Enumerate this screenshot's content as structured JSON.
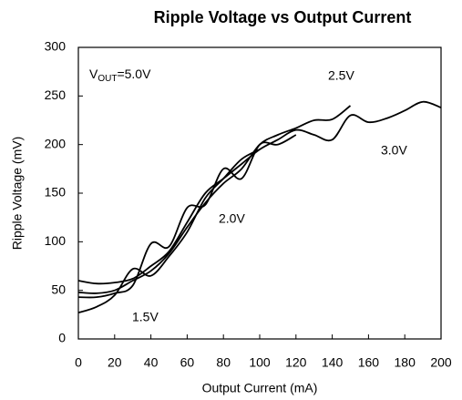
{
  "chart_data": {
    "type": "line",
    "title": "Ripple Voltage vs Output Current",
    "x_label": "Output Current (mA)",
    "y_label": "Ripple Voltage (mV)",
    "annotation": [
      "V",
      "OUT",
      "=5.0V"
    ],
    "xlim": [
      0,
      200
    ],
    "xticks": [
      0,
      20,
      40,
      60,
      80,
      100,
      120,
      140,
      160,
      180,
      200
    ],
    "ylim": [
      0,
      300
    ],
    "yticks": [
      0,
      50,
      100,
      150,
      200,
      250,
      300
    ],
    "series": [
      {
        "name": "1.5V",
        "color": "#000000",
        "x": [
          0,
          10,
          20,
          30,
          40,
          50,
          60,
          70,
          80,
          90,
          100
        ],
        "values": [
          27,
          33,
          45,
          72,
          65,
          85,
          110,
          145,
          165,
          185,
          195
        ]
      },
      {
        "name": "2.0V",
        "color": "#000000",
        "x": [
          0,
          10,
          20,
          30,
          40,
          50,
          60,
          70,
          80,
          90,
          100,
          110,
          120
        ],
        "values": [
          43,
          43,
          47,
          55,
          98,
          95,
          135,
          138,
          175,
          165,
          200,
          200,
          210
        ]
      },
      {
        "name": "2.5V",
        "color": "#000000",
        "x": [
          0,
          10,
          20,
          30,
          40,
          50,
          60,
          70,
          80,
          90,
          100,
          110,
          120,
          130,
          140,
          150
        ],
        "values": [
          48,
          47,
          50,
          60,
          70,
          88,
          115,
          140,
          160,
          175,
          200,
          210,
          217,
          225,
          226,
          240
        ]
      },
      {
        "name": "3.0V",
        "color": "#000000",
        "x": [
          0,
          10,
          20,
          30,
          40,
          50,
          60,
          70,
          80,
          90,
          100,
          110,
          120,
          130,
          140,
          150,
          160,
          170,
          180,
          190,
          200
        ],
        "values": [
          60,
          57,
          58,
          62,
          75,
          90,
          120,
          150,
          165,
          180,
          195,
          205,
          215,
          210,
          205,
          230,
          223,
          227,
          235,
          244,
          238
        ]
      }
    ]
  }
}
